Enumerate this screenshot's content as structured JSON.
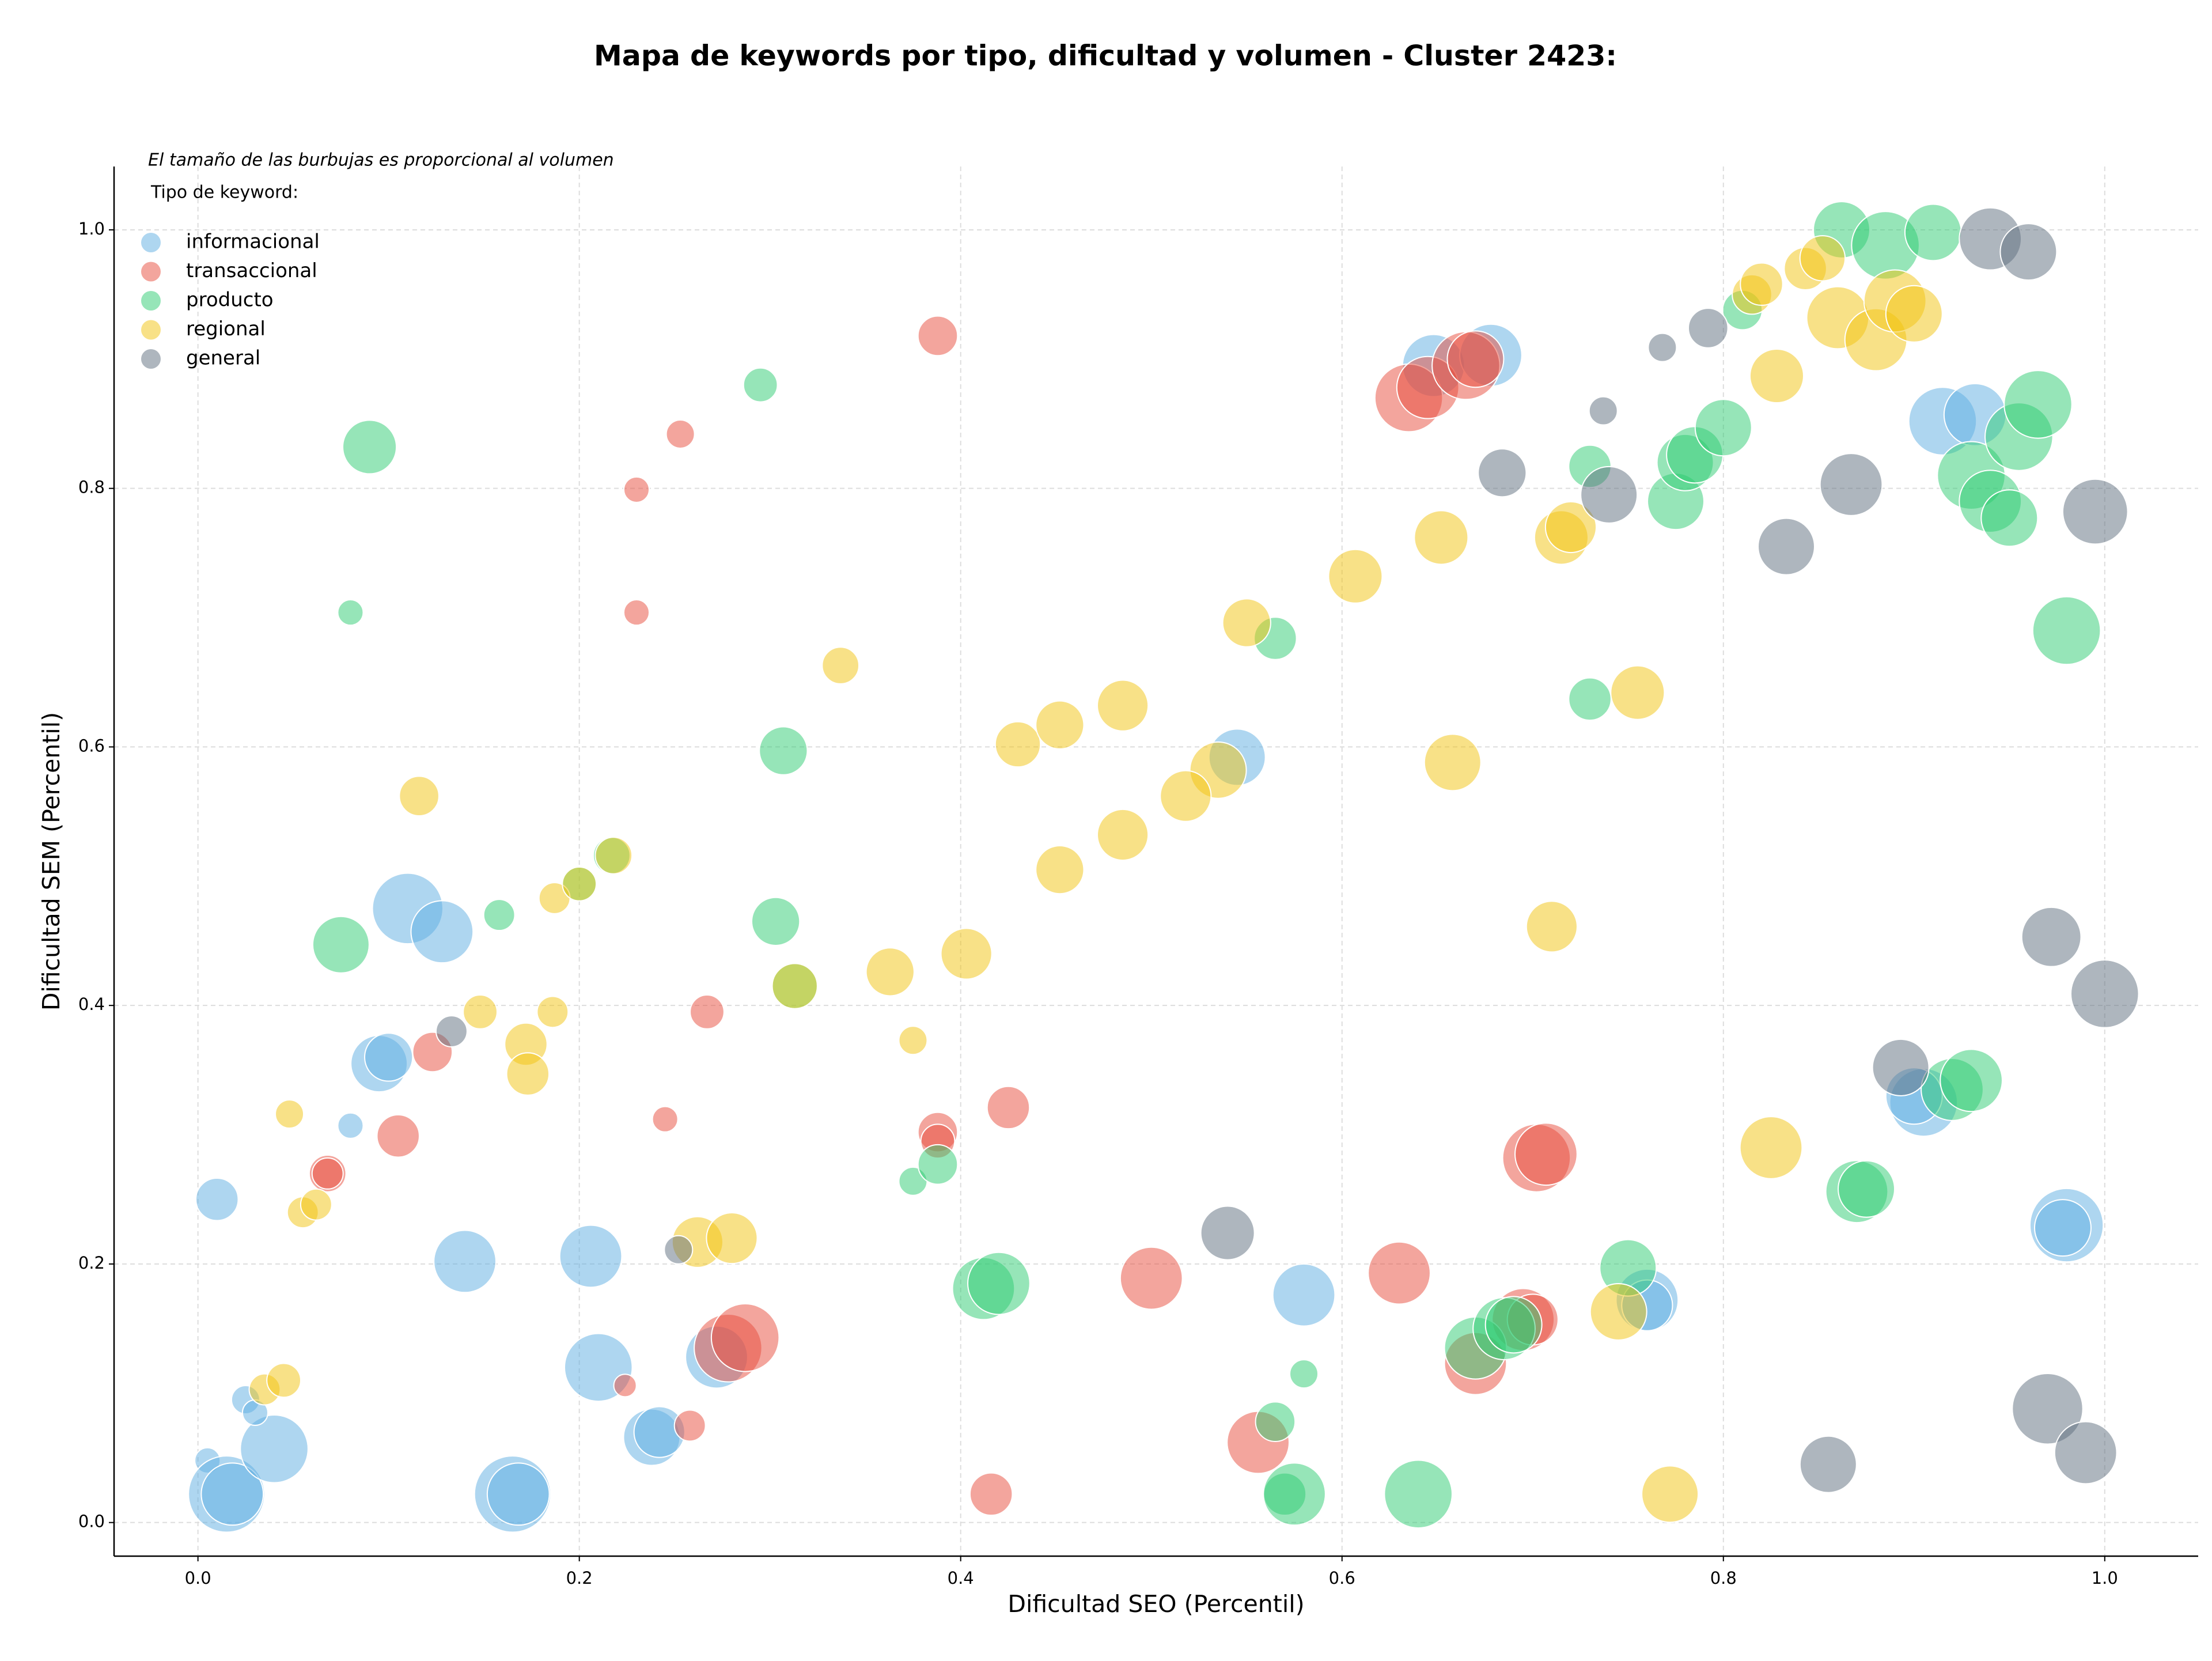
{
  "chart_data": {
    "type": "bubble",
    "title": "Mapa de keywords por tipo, dificultad y volumen - Cluster 2423:",
    "annotation": "El tamaño de las burbujas es proporcional al volumen",
    "legend_title": "Tipo de keyword:",
    "legend_position": "upper left",
    "x_label": "Dificultad SEO (Percentil)",
    "y_label": "Dificultad SEM (Percentil)",
    "xlim": [
      -0.044,
      1.049
    ],
    "ylim": [
      -0.026,
      1.049
    ],
    "xticks": [
      {
        "value": 0,
        "label": "0.0"
      },
      0.2,
      0.4,
      0.6,
      0.8,
      {
        "value": 1,
        "label": "1.0"
      }
    ],
    "yticks": [
      {
        "value": 0,
        "label": "0.0"
      },
      0.2,
      0.4,
      0.6,
      0.8,
      {
        "value": 1,
        "label": "1.0"
      }
    ],
    "grid": true,
    "series": [
      {
        "name": "informacional",
        "color": "#5DADE2",
        "x": [
          0.01,
          0.005,
          0.015,
          0.018,
          0.04,
          0.025,
          0.03,
          0.08,
          0.095,
          0.1,
          0.11,
          0.128,
          0.14,
          0.165,
          0.168,
          0.206,
          0.21,
          0.238,
          0.242,
          0.272,
          0.545,
          0.58,
          0.648,
          0.678,
          0.76,
          0.76,
          0.915,
          0.932,
          0.905,
          0.9,
          0.98,
          0.978
        ],
        "y": [
          0.25,
          0.048,
          0.022,
          0.022,
          0.057,
          0.095,
          0.085,
          0.307,
          0.355,
          0.36,
          0.475,
          0.457,
          0.202,
          0.022,
          0.022,
          0.206,
          0.12,
          0.066,
          0.07,
          0.128,
          0.592,
          0.176,
          0.895,
          0.903,
          0.172,
          0.168,
          0.852,
          0.857,
          0.325,
          0.33,
          0.23,
          0.228
        ],
        "sizes": [
          225,
          81,
          729,
          484,
          576,
          100,
          81,
          81,
          400,
          289,
          625,
          484,
          484,
          729,
          484,
          484,
          576,
          400,
          324,
          484,
          400,
          484,
          484,
          484,
          484,
          324,
          576,
          484,
          576,
          400,
          676,
          400
        ]
      },
      {
        "name": "transaccional",
        "color": "#E74C3C",
        "x": [
          0.388,
          0.253,
          0.23,
          0.23,
          0.123,
          0.105,
          0.068,
          0.068,
          0.224,
          0.245,
          0.267,
          0.258,
          0.278,
          0.287,
          0.388,
          0.388,
          0.425,
          0.416,
          0.5,
          0.556,
          0.63,
          0.635,
          0.645,
          0.665,
          0.67,
          0.67,
          0.695,
          0.7,
          0.702,
          0.707
        ],
        "y": [
          0.918,
          0.842,
          0.799,
          0.704,
          0.364,
          0.299,
          0.27,
          0.27,
          0.106,
          0.312,
          0.395,
          0.075,
          0.135,
          0.143,
          0.302,
          0.295,
          0.321,
          0.022,
          0.189,
          0.062,
          0.193,
          0.87,
          0.878,
          0.895,
          0.9,
          0.123,
          0.157,
          0.157,
          0.282,
          0.285
        ],
        "sizes": [
          196,
          100,
          81,
          81,
          196,
          225,
          169,
          121,
          64,
          81,
          144,
          121,
          576,
          576,
          196,
          144,
          225,
          225,
          484,
          484,
          484,
          576,
          484,
          576,
          400,
          484,
          484,
          324,
          576,
          484
        ]
      },
      {
        "name": "producto",
        "color": "#2ECC71",
        "x": [
          0.295,
          0.09,
          0.08,
          0.075,
          0.158,
          0.307,
          0.303,
          0.375,
          0.388,
          0.412,
          0.42,
          0.565,
          0.565,
          0.58,
          0.57,
          0.575,
          0.64,
          0.67,
          0.685,
          0.69,
          0.73,
          0.73,
          0.75,
          0.775,
          0.78,
          0.785,
          0.8,
          0.81,
          0.862,
          0.885,
          0.91,
          0.87,
          0.875,
          0.92,
          0.93,
          0.93,
          0.94,
          0.95,
          0.955,
          0.965,
          0.98,
          0.217,
          0.2,
          0.313
        ],
        "y": [
          0.88,
          0.832,
          0.704,
          0.447,
          0.47,
          0.597,
          0.465,
          0.264,
          0.277,
          0.181,
          0.185,
          0.684,
          0.078,
          0.115,
          0.022,
          0.022,
          0.022,
          0.135,
          0.15,
          0.153,
          0.637,
          0.817,
          0.197,
          0.79,
          0.82,
          0.826,
          0.847,
          0.938,
          1.0,
          0.988,
          0.998,
          0.256,
          0.258,
          0.335,
          0.342,
          0.81,
          0.79,
          0.777,
          0.84,
          0.865,
          0.69,
          0.516,
          0.494,
          0.415
        ],
        "sizes": [
          144,
          361,
          81,
          400,
          121,
          289,
          289,
          100,
          196,
          484,
          484,
          225,
          196,
          100,
          225,
          484,
          576,
          484,
          484,
          400,
          225,
          225,
          400,
          400,
          400,
          400,
          400,
          196,
          400,
          576,
          400,
          484,
          400,
          484,
          484,
          576,
          484,
          400,
          576,
          576,
          576,
          169,
          144,
          256
        ]
      },
      {
        "name": "regional",
        "color": "#F1C40F",
        "x": [
          0.116,
          0.048,
          0.055,
          0.062,
          0.035,
          0.045,
          0.148,
          0.172,
          0.173,
          0.186,
          0.187,
          0.2,
          0.218,
          0.262,
          0.28,
          0.313,
          0.337,
          0.363,
          0.375,
          0.403,
          0.43,
          0.452,
          0.452,
          0.485,
          0.485,
          0.535,
          0.518,
          0.55,
          0.607,
          0.652,
          0.658,
          0.71,
          0.715,
          0.72,
          0.745,
          0.755,
          0.772,
          0.825,
          0.828,
          0.815,
          0.82,
          0.843,
          0.852,
          0.86,
          0.88,
          0.89,
          0.9
        ],
        "y": [
          0.562,
          0.316,
          0.24,
          0.246,
          0.103,
          0.11,
          0.395,
          0.37,
          0.347,
          0.395,
          0.483,
          0.494,
          0.516,
          0.217,
          0.22,
          0.415,
          0.663,
          0.426,
          0.373,
          0.44,
          0.602,
          0.617,
          0.505,
          0.632,
          0.532,
          0.582,
          0.562,
          0.696,
          0.732,
          0.762,
          0.588,
          0.461,
          0.762,
          0.77,
          0.163,
          0.642,
          0.022,
          0.29,
          0.887,
          0.95,
          0.958,
          0.97,
          0.978,
          0.932,
          0.915,
          0.945,
          0.935
        ],
        "sizes": [
          196,
          100,
          121,
          121,
          121,
          144,
          144,
          225,
          225,
          121,
          121,
          144,
          169,
          324,
          324,
          256,
          169,
          289,
          100,
          324,
          256,
          289,
          289,
          324,
          324,
          400,
          324,
          289,
          361,
          361,
          400,
          324,
          361,
          324,
          400,
          361,
          400,
          484,
          361,
          196,
          225,
          225,
          256,
          484,
          484,
          484,
          400
        ]
      },
      {
        "name": "general",
        "color": "#5D6D7E",
        "x": [
          0.133,
          0.252,
          0.54,
          0.684,
          0.737,
          0.74,
          0.768,
          0.792,
          0.833,
          0.867,
          0.855,
          0.893,
          0.94,
          0.96,
          0.97,
          0.972,
          0.99,
          0.995,
          1.0
        ],
        "y": [
          0.38,
          0.211,
          0.224,
          0.812,
          0.86,
          0.795,
          0.909,
          0.924,
          0.755,
          0.803,
          0.045,
          0.352,
          0.993,
          0.983,
          0.088,
          0.453,
          0.054,
          0.782,
          0.409
        ],
        "sizes": [
          121,
          100,
          361,
          289,
          100,
          400,
          100,
          196,
          400,
          484,
          400,
          400,
          484,
          400,
          625,
          441,
          484,
          529,
          576
        ]
      }
    ]
  }
}
